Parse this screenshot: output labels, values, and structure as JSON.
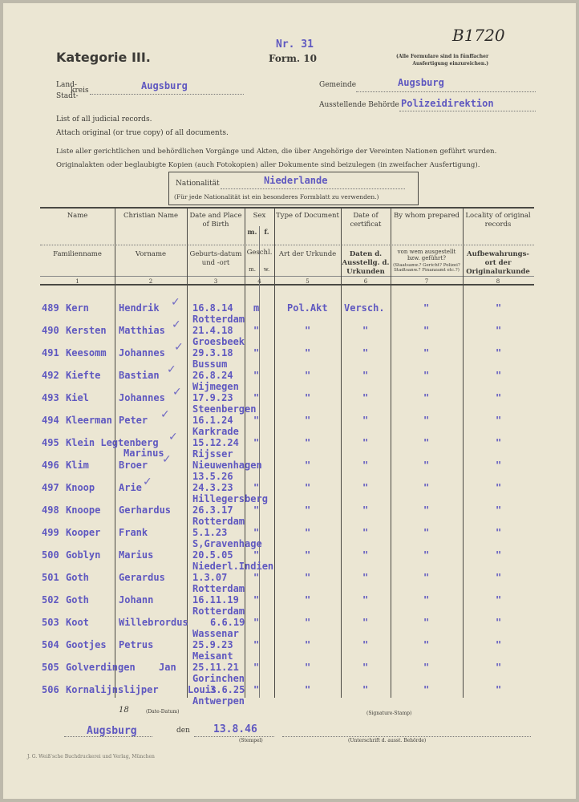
{
  "header": {
    "archive_number": "B1720",
    "category": "Kategorie III.",
    "nr": "Nr. 31",
    "form": "Form. 10",
    "note_line1": "(Alle Formulare sind in fünffacher",
    "note_line2": "Ausfertigung einzureichen.)",
    "land_label": "Land-",
    "kreis_label": "kreis",
    "stadt_label": "Stadt-",
    "kreis_value": "Augsburg",
    "gemeinde_label": "Gemeinde",
    "gemeinde_value": "Augsburg",
    "behoerde_label": "Ausstellende Behörde",
    "behoerde_value": "Polizeidirektion",
    "instructions": [
      "List of all judicial records.",
      "Attach original (or true copy) of all documents.",
      "Liste aller gerichtlichen und behördlichen Vorgänge und Akten, die über Angehörige der Vereinten Nationen geführt wurden.",
      "Originalakten oder beglaubigte Kopien (auch Fotokopien) aller Dokumente sind beizulegen (in zweifacher Ausfertigung)."
    ],
    "nationality_label": "Nationalität",
    "nationality_value": "Niederlande",
    "nationality_note": "(Für jede Nationalität ist ein besonderes Formblatt zu verwenden.)"
  },
  "table": {
    "columns": [
      {
        "en": "Name",
        "de": "Familienname",
        "num": "1"
      },
      {
        "en": "Christian Name",
        "de": "Vorname",
        "num": "2"
      },
      {
        "en": "Date and Place of Birth",
        "de": "Geburts-datum und -ort",
        "num": "3"
      },
      {
        "en": "Sex",
        "de": "Geschl.",
        "num": "4",
        "en_m": "m.",
        "en_f": "f.",
        "de_m": "m.",
        "de_w": "w."
      },
      {
        "en": "Type of Document",
        "de": "Art der Urkunde",
        "num": "5"
      },
      {
        "en": "Date of certificat",
        "de": "Daten d. Ausstellg. d. Urkunden",
        "num": "6"
      },
      {
        "en": "By whom prepared",
        "de": "von wem ausgestellt bzw. geführt?",
        "de_note": "(Staatsanw.? Gericht? Polizei? Stadtsanw.? Finanzamt etc.?)",
        "num": "7"
      },
      {
        "en": "Locality of original records",
        "de": "Aufbewahrungs-ort der Originalurkunde",
        "num": "8"
      }
    ],
    "rows": [
      {
        "no": "489",
        "name": "Kern",
        "first": "Hendrik",
        "check": true,
        "birth1": "16.8.14",
        "birth2": "Rotterdam",
        "sex": "m",
        "doc": "Pol.Akt",
        "date": "Versch.",
        "by": "\"",
        "loc": "\""
      },
      {
        "no": "490",
        "name": "Kersten",
        "first": "Matthias",
        "check": true,
        "birth1": "21.4.18",
        "birth2": "Groesbeek",
        "sex": "\"",
        "doc": "\"",
        "date": "\"",
        "by": "\"",
        "loc": "\""
      },
      {
        "no": "491",
        "name": "Keesomm",
        "first": "Johannes",
        "check": true,
        "birth1": "29.3.18",
        "birth2": "Bussum",
        "sex": "\"",
        "doc": "\"",
        "date": "\"",
        "by": "\"",
        "loc": "\""
      },
      {
        "no": "492",
        "name": "Kiefte",
        "first": "Bastian",
        "check": true,
        "birth1": "26.8.24",
        "birth2": "Wijmegen",
        "sex": "\"",
        "doc": "\"",
        "date": "\"",
        "by": "\"",
        "loc": "\""
      },
      {
        "no": "493",
        "name": "Kiel",
        "first": "Johannes",
        "check": true,
        "birth1": "17.9.23",
        "birth2": "Steenbergen",
        "sex": "\"",
        "doc": "\"",
        "date": "\"",
        "by": "\"",
        "loc": "\""
      },
      {
        "no": "494",
        "name": "Kleerman",
        "first": "Peter",
        "check": true,
        "birth1": "16.1.24",
        "birth2": "Karkrade",
        "sex": "\"",
        "doc": "\"",
        "date": "\"",
        "by": "\"",
        "loc": "\""
      },
      {
        "no": "495",
        "name": "Klein Legtenberg",
        "first": "Marinus",
        "check": true,
        "birth1": "15.12.24",
        "birth2": "Rijsser",
        "sex": "\"",
        "doc": "\"",
        "date": "\"",
        "by": "\"",
        "loc": "\""
      },
      {
        "no": "496",
        "name": "Klim",
        "first": "Broer",
        "check": true,
        "birth1": "Nieuwenhagen",
        "birth2": "13.5.26",
        "sex": "",
        "doc": "\"",
        "date": "\"",
        "by": "\"",
        "loc": "\""
      },
      {
        "no": "497",
        "name": "Knoop",
        "first": "Arie",
        "check": true,
        "birth1": "24.3.23",
        "birth2": "Hillegersberg",
        "sex": "\"",
        "doc": "\"",
        "date": "\"",
        "by": "\"",
        "loc": "\""
      },
      {
        "no": "498",
        "name": "Knoope",
        "first": "Gerhardus",
        "check": false,
        "birth1": "26.3.17",
        "birth2": "Rotterdam",
        "sex": "\"",
        "doc": "\"",
        "date": "\"",
        "by": "\"",
        "loc": "\""
      },
      {
        "no": "499",
        "name": "Kooper",
        "first": "Frank",
        "check": false,
        "birth1": "5.1.23",
        "birth2": "S,Gravenhage",
        "sex": "\"",
        "doc": "\"",
        "date": "\"",
        "by": "\"",
        "loc": "\""
      },
      {
        "no": "500",
        "name": "Goblyn",
        "first": "Marius",
        "check": false,
        "birth1": "20.5.05",
        "birth2": "Niederl.Indien",
        "sex": "\"",
        "doc": "\"",
        "date": "\"",
        "by": "\"",
        "loc": "\""
      },
      {
        "no": "501",
        "name": "Goth",
        "first": "Gerardus",
        "check": false,
        "birth1": "1.3.07",
        "birth2": "Rotterdam",
        "sex": "\"",
        "doc": "\"",
        "date": "\"",
        "by": "\"",
        "loc": "\""
      },
      {
        "no": "502",
        "name": "Goth",
        "first": "Johann",
        "check": false,
        "birth1": "16.11.19",
        "birth2": "Rotterdam",
        "sex": "\"",
        "doc": "\"",
        "date": "\"",
        "by": "\"",
        "loc": "\""
      },
      {
        "no": "503",
        "name": "Koot",
        "first": "Willebrordus",
        "check": false,
        "birth1": "6.6.19",
        "birth2": "Wassenar",
        "sex": "\"",
        "doc": "\"",
        "date": "\"",
        "by": "\"",
        "loc": "\""
      },
      {
        "no": "504",
        "name": "Gootjes",
        "first": "Petrus",
        "check": false,
        "birth1": "25.9.23",
        "birth2": "Meisant",
        "sex": "\"",
        "doc": "\"",
        "date": "\"",
        "by": "\"",
        "loc": "\""
      },
      {
        "no": "505",
        "name": "Golverdingen",
        "first": "Jan",
        "check": false,
        "birth1": "25.11.21",
        "birth2": "Gorinchen",
        "sex": "\"",
        "doc": "\"",
        "date": "\"",
        "by": "\"",
        "loc": "\""
      },
      {
        "no": "506",
        "name": "Kornalijnslijper",
        "first": "Louis",
        "check": false,
        "birth1": "3.6.25",
        "birth2": "Antwerpen",
        "sex": "\"",
        "doc": "\"",
        "date": "\"",
        "by": "\"",
        "loc": "\""
      }
    ]
  },
  "footer": {
    "date_label": "(Date-Datum)",
    "signature_label": "(Signature-Stamp)",
    "place_value": "Augsburg",
    "den_label": "den",
    "date_value": "13.8.46",
    "stempel_label": "(Stempel)",
    "unterschrift_label": "(Unterschrift d. ausst. Behörde)",
    "handwritten_mark": "18",
    "printer": "J. G. Weiß'sche Buchdruckerei und Verlag, München"
  }
}
